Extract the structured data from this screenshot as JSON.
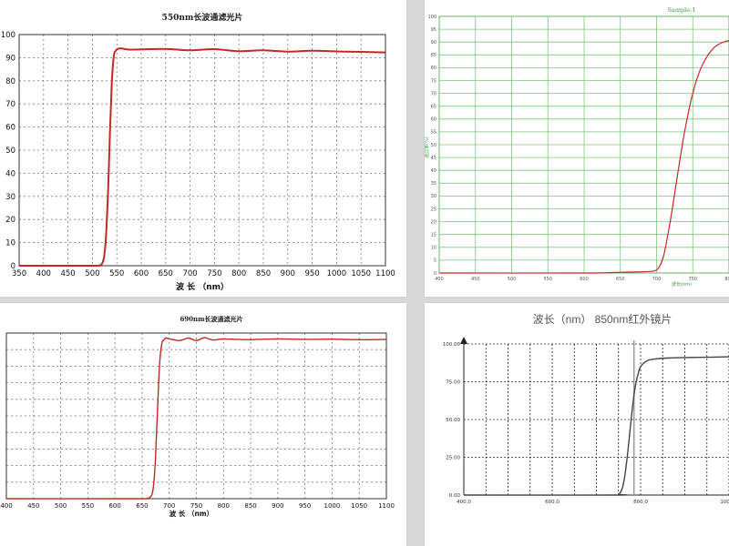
{
  "colors": {
    "curve_red": "#c42828",
    "grid_gray": "#777777",
    "p2_grid_green": "#7cc87c",
    "p2_label_green": "#3a9a3a",
    "curve_dark": "#444444"
  },
  "chart_data": [
    {
      "type": "line",
      "title": "550nm长波通滤光片",
      "xlabel": "波 长 （nm）",
      "ylabel": "",
      "xlim": [
        350,
        1100
      ],
      "ylim": [
        0,
        100
      ],
      "xticks": [
        "350",
        "400",
        "450",
        "500",
        "550",
        "600",
        "650",
        "700",
        "750",
        "800",
        "850",
        "900",
        "950",
        "1000",
        "1050",
        "1100"
      ],
      "yticks": [
        "0",
        "10",
        "20",
        "30",
        "40",
        "50",
        "60",
        "70",
        "80",
        "90",
        "100"
      ],
      "grid": true,
      "series": [
        {
          "x": [
            350,
            500,
            515,
            520,
            524,
            528,
            532,
            536,
            540,
            544,
            548,
            552,
            560,
            575,
            600,
            650,
            700,
            750,
            800,
            850,
            900,
            950,
            1000,
            1050,
            1100
          ],
          "y": [
            0,
            0,
            0.2,
            1,
            4,
            13,
            32,
            58,
            80,
            91,
            93,
            93.8,
            94,
            93.5,
            93.6,
            93.8,
            93.2,
            93.7,
            92.8,
            93.2,
            92.6,
            93,
            92.7,
            92.5,
            92.3
          ]
        }
      ]
    },
    {
      "type": "line",
      "title": "Sample-1",
      "xlabel": "波长(nm)",
      "ylabel": "透过率(%)",
      "xlim": [
        400,
        800
      ],
      "ylim": [
        0,
        100
      ],
      "xticks": [
        "400",
        "450",
        "500",
        "550",
        "600",
        "650",
        "700",
        "750",
        "800"
      ],
      "yticks": [
        "0",
        "5",
        "10",
        "15",
        "20",
        "25",
        "30",
        "35",
        "40",
        "45",
        "50",
        "55",
        "60",
        "65",
        "70",
        "75",
        "80",
        "85",
        "90",
        "95",
        "100"
      ],
      "grid": true,
      "series": [
        {
          "x": [
            400,
            600,
            650,
            690,
            700,
            705,
            710,
            715,
            720,
            725,
            730,
            735,
            740,
            745,
            750,
            755,
            760,
            765,
            770,
            775,
            780,
            785,
            790,
            795,
            800
          ],
          "y": [
            0,
            0,
            0.3,
            0.6,
            1.2,
            3,
            7,
            14,
            22,
            31,
            40,
            49,
            57,
            64,
            70,
            75,
            79,
            82,
            84.5,
            86.5,
            88,
            89,
            89.7,
            90.2,
            90.6
          ]
        }
      ]
    },
    {
      "type": "line",
      "title": "690nm长波通滤光片",
      "xlabel": "波 长 （nm）",
      "ylabel": "",
      "xlim": [
        400,
        1100
      ],
      "ylim": [
        0,
        100
      ],
      "xticks": [
        "400",
        "450",
        "500",
        "550",
        "600",
        "650",
        "700",
        "750",
        "800",
        "850",
        "900",
        "950",
        "1000",
        "1050",
        "1100"
      ],
      "yticks": [
        "",
        "",
        "",
        "",
        "",
        "",
        "",
        "",
        "",
        "",
        ""
      ],
      "grid": true,
      "series": [
        {
          "x": [
            400,
            640,
            660,
            665,
            670,
            674,
            678,
            682,
            686,
            690,
            695,
            700,
            720,
            735,
            750,
            765,
            780,
            800,
            850,
            900,
            950,
            1000,
            1050,
            1100
          ],
          "y": [
            0,
            0,
            0.3,
            1,
            5,
            20,
            50,
            80,
            93,
            96,
            97,
            96.5,
            95.5,
            97,
            95.5,
            97.2,
            95.8,
            96.4,
            96,
            96.5,
            96.2,
            96.3,
            96,
            96.2
          ]
        }
      ]
    },
    {
      "type": "line",
      "title": "波长（nm）  850nm红外镜片",
      "xlabel": "",
      "ylabel": "",
      "xlim": [
        400,
        1000
      ],
      "ylim": [
        0,
        100
      ],
      "xticks": [
        "400.0",
        "600.0",
        "800.0",
        "1000.0"
      ],
      "yticks": [
        "0.00",
        "25.00",
        "50.00",
        "75.00",
        "100.00"
      ],
      "xtick_values": [
        400,
        600,
        800,
        1000
      ],
      "ytick_values": [
        0,
        25,
        50,
        75,
        100
      ],
      "grid": true,
      "marker_line_x": 785,
      "series": [
        {
          "x": [
            400,
            740,
            750,
            755,
            760,
            765,
            770,
            775,
            780,
            785,
            790,
            795,
            800,
            810,
            820,
            840,
            870,
            900,
            950,
            1000
          ],
          "y": [
            0,
            0,
            0.5,
            2,
            6,
            14,
            26,
            40,
            54,
            66,
            75,
            81,
            85,
            88,
            89.5,
            90.3,
            90.8,
            91,
            91.2,
            91.5
          ]
        }
      ]
    }
  ]
}
